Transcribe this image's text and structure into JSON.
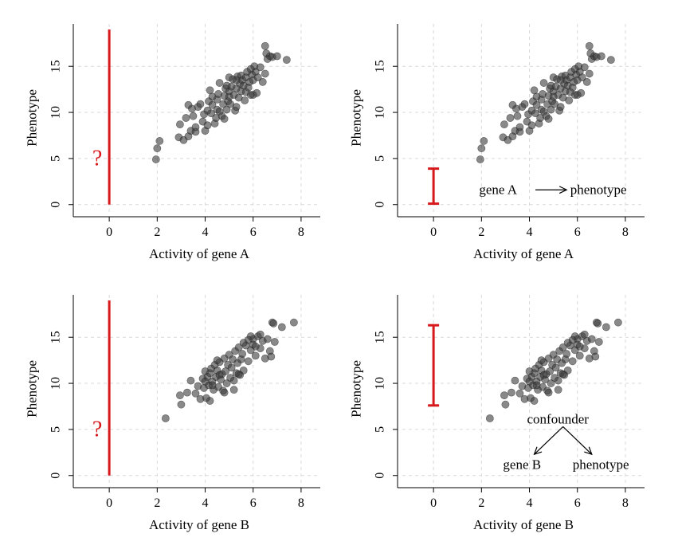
{
  "chart_data": [
    {
      "type": "scatter",
      "xlabel": "Activity of gene A",
      "ylabel": "Phenotype",
      "xlim": [
        -1.3,
        8.8
      ],
      "ylim": [
        -0.8,
        19.6
      ],
      "xticks": [
        0,
        2,
        4,
        6,
        8
      ],
      "yticks": [
        0,
        5,
        10,
        15
      ],
      "grid": true,
      "interval": {
        "x": 0,
        "lo": 0,
        "hi": 19,
        "style": "line"
      },
      "question_mark": {
        "text": "?",
        "x": -0.5,
        "y": 5
      },
      "annotations": [],
      "points": [
        [
          1.95,
          4.9
        ],
        [
          2.0,
          6.1
        ],
        [
          2.1,
          6.9
        ],
        [
          2.9,
          7.3
        ],
        [
          3.1,
          7.0
        ],
        [
          3.3,
          7.4
        ],
        [
          3.4,
          8.0
        ],
        [
          3.6,
          7.9
        ],
        [
          2.95,
          8.7
        ],
        [
          3.2,
          9.4
        ],
        [
          3.3,
          10.8
        ],
        [
          3.5,
          9.6
        ],
        [
          3.6,
          8.4
        ],
        [
          3.7,
          10.6
        ],
        [
          3.9,
          9.0
        ],
        [
          3.95,
          9.8
        ],
        [
          4.0,
          8.0
        ],
        [
          4.1,
          8.6
        ],
        [
          4.1,
          10.2
        ],
        [
          4.15,
          11.2
        ],
        [
          4.25,
          9.9
        ],
        [
          4.3,
          10.8
        ],
        [
          4.3,
          11.7
        ],
        [
          4.4,
          8.8
        ],
        [
          4.45,
          9.4
        ],
        [
          4.5,
          10.3
        ],
        [
          4.5,
          11.4
        ],
        [
          4.55,
          12.0
        ],
        [
          4.6,
          13.2
        ],
        [
          4.7,
          9.6
        ],
        [
          4.75,
          10.9
        ],
        [
          4.8,
          11.8
        ],
        [
          4.85,
          12.6
        ],
        [
          4.9,
          10.3
        ],
        [
          4.95,
          11.2
        ],
        [
          5.0,
          12.3
        ],
        [
          5.0,
          13.8
        ],
        [
          5.05,
          10.9
        ],
        [
          5.1,
          12.8
        ],
        [
          5.15,
          13.6
        ],
        [
          5.2,
          11.9
        ],
        [
          5.25,
          10.2
        ],
        [
          5.3,
          12.6
        ],
        [
          5.35,
          13.9
        ],
        [
          5.4,
          11.6
        ],
        [
          5.45,
          13.1
        ],
        [
          5.5,
          12.3
        ],
        [
          5.5,
          14.0
        ],
        [
          5.55,
          13.5
        ],
        [
          5.6,
          12.9
        ],
        [
          5.65,
          11.3
        ],
        [
          5.7,
          13.8
        ],
        [
          5.75,
          14.4
        ],
        [
          5.8,
          12.7
        ],
        [
          5.85,
          13.3
        ],
        [
          5.9,
          11.9
        ],
        [
          5.95,
          14.1
        ],
        [
          6.0,
          13.5
        ],
        [
          6.05,
          15.0
        ],
        [
          6.1,
          14.4
        ],
        [
          6.15,
          12.1
        ],
        [
          6.2,
          13.8
        ],
        [
          6.3,
          14.9
        ],
        [
          6.4,
          13.3
        ],
        [
          6.5,
          14.2
        ],
        [
          6.5,
          17.2
        ],
        [
          6.6,
          15.8
        ],
        [
          6.7,
          16.1
        ],
        [
          6.8,
          16.0
        ],
        [
          7.0,
          16.1
        ],
        [
          7.4,
          15.7
        ],
        [
          3.8,
          10.9
        ],
        [
          4.2,
          12.4
        ],
        [
          4.6,
          10.1
        ],
        [
          5.0,
          11.7
        ],
        [
          5.3,
          10.6
        ],
        [
          5.7,
          12.2
        ],
        [
          6.0,
          11.9
        ],
        [
          4.8,
          9.3
        ],
        [
          5.9,
          14.7
        ],
        [
          4.9,
          12.9
        ],
        [
          5.3,
          13.5
        ],
        [
          3.45,
          10.4
        ],
        [
          6.55,
          16.4
        ]
      ]
    },
    {
      "type": "scatter",
      "xlabel": "Activity of gene A",
      "ylabel": "Phenotype",
      "xlim": [
        -1.3,
        8.8
      ],
      "ylim": [
        -0.8,
        19.6
      ],
      "xticks": [
        0,
        2,
        4,
        6,
        8
      ],
      "yticks": [
        0,
        5,
        10,
        15
      ],
      "grid": true,
      "interval": {
        "x": 0,
        "lo": 0.1,
        "hi": 3.9,
        "style": "errorbar"
      },
      "question_mark": null,
      "annotations": [
        {
          "text": "gene A",
          "x": 1.9,
          "y": 1.6
        },
        {
          "text": "phenotype",
          "x": 5.7,
          "y": 1.6
        }
      ],
      "arrows": [
        {
          "from": [
            4.25,
            1.6
          ],
          "to": [
            5.55,
            1.6
          ]
        }
      ],
      "points": [
        [
          1.95,
          4.9
        ],
        [
          2.0,
          6.1
        ],
        [
          2.1,
          6.9
        ],
        [
          2.9,
          7.3
        ],
        [
          3.1,
          7.0
        ],
        [
          3.3,
          7.4
        ],
        [
          3.4,
          8.0
        ],
        [
          3.6,
          7.9
        ],
        [
          2.95,
          8.7
        ],
        [
          3.2,
          9.4
        ],
        [
          3.3,
          10.8
        ],
        [
          3.5,
          9.6
        ],
        [
          3.6,
          8.4
        ],
        [
          3.7,
          10.6
        ],
        [
          3.9,
          9.0
        ],
        [
          3.95,
          9.8
        ],
        [
          4.0,
          8.0
        ],
        [
          4.1,
          8.6
        ],
        [
          4.1,
          10.2
        ],
        [
          4.15,
          11.2
        ],
        [
          4.25,
          9.9
        ],
        [
          4.3,
          10.8
        ],
        [
          4.3,
          11.7
        ],
        [
          4.4,
          8.8
        ],
        [
          4.45,
          9.4
        ],
        [
          4.5,
          10.3
        ],
        [
          4.5,
          11.4
        ],
        [
          4.55,
          12.0
        ],
        [
          4.6,
          13.2
        ],
        [
          4.7,
          9.6
        ],
        [
          4.75,
          10.9
        ],
        [
          4.8,
          11.8
        ],
        [
          4.85,
          12.6
        ],
        [
          4.9,
          10.3
        ],
        [
          4.95,
          11.2
        ],
        [
          5.0,
          12.3
        ],
        [
          5.0,
          13.8
        ],
        [
          5.05,
          10.9
        ],
        [
          5.1,
          12.8
        ],
        [
          5.15,
          13.6
        ],
        [
          5.2,
          11.9
        ],
        [
          5.25,
          10.2
        ],
        [
          5.3,
          12.6
        ],
        [
          5.35,
          13.9
        ],
        [
          5.4,
          11.6
        ],
        [
          5.45,
          13.1
        ],
        [
          5.5,
          12.3
        ],
        [
          5.5,
          14.0
        ],
        [
          5.55,
          13.5
        ],
        [
          5.6,
          12.9
        ],
        [
          5.65,
          11.3
        ],
        [
          5.7,
          13.8
        ],
        [
          5.75,
          14.4
        ],
        [
          5.8,
          12.7
        ],
        [
          5.85,
          13.3
        ],
        [
          5.9,
          11.9
        ],
        [
          5.95,
          14.1
        ],
        [
          6.0,
          13.5
        ],
        [
          6.05,
          15.0
        ],
        [
          6.1,
          14.4
        ],
        [
          6.15,
          12.1
        ],
        [
          6.2,
          13.8
        ],
        [
          6.3,
          14.9
        ],
        [
          6.4,
          13.3
        ],
        [
          6.5,
          14.2
        ],
        [
          6.5,
          17.2
        ],
        [
          6.6,
          15.8
        ],
        [
          6.7,
          16.1
        ],
        [
          6.8,
          16.0
        ],
        [
          7.0,
          16.1
        ],
        [
          7.4,
          15.7
        ],
        [
          3.8,
          10.9
        ],
        [
          4.2,
          12.4
        ],
        [
          4.6,
          10.1
        ],
        [
          5.0,
          11.7
        ],
        [
          5.3,
          10.6
        ],
        [
          5.7,
          12.2
        ],
        [
          6.0,
          11.9
        ],
        [
          4.8,
          9.3
        ],
        [
          5.9,
          14.7
        ],
        [
          4.9,
          12.9
        ],
        [
          5.3,
          13.5
        ],
        [
          3.45,
          10.4
        ],
        [
          6.55,
          16.4
        ]
      ]
    },
    {
      "type": "scatter",
      "xlabel": "Activity of gene B",
      "ylabel": "Phenotype",
      "xlim": [
        -1.3,
        8.8
      ],
      "ylim": [
        -0.8,
        19.6
      ],
      "xticks": [
        0,
        2,
        4,
        6,
        8
      ],
      "yticks": [
        0,
        5,
        10,
        15
      ],
      "grid": true,
      "interval": {
        "x": 0,
        "lo": 0,
        "hi": 19,
        "style": "line"
      },
      "question_mark": {
        "text": "?",
        "x": -0.5,
        "y": 5
      },
      "annotations": [],
      "points": [
        [
          2.35,
          6.2
        ],
        [
          2.95,
          8.7
        ],
        [
          3.0,
          7.7
        ],
        [
          3.25,
          9.0
        ],
        [
          3.4,
          10.3
        ],
        [
          3.6,
          8.9
        ],
        [
          3.7,
          9.7
        ],
        [
          3.8,
          8.3
        ],
        [
          3.9,
          10.5
        ],
        [
          3.95,
          9.5
        ],
        [
          4.0,
          11.3
        ],
        [
          4.05,
          8.4
        ],
        [
          4.1,
          10.7
        ],
        [
          4.15,
          9.8
        ],
        [
          4.2,
          8.1
        ],
        [
          4.25,
          11.6
        ],
        [
          4.3,
          10.2
        ],
        [
          4.35,
          9.3
        ],
        [
          4.4,
          12.0
        ],
        [
          4.45,
          10.7
        ],
        [
          4.5,
          11.4
        ],
        [
          4.55,
          9.6
        ],
        [
          4.6,
          12.3
        ],
        [
          4.65,
          10.4
        ],
        [
          4.7,
          11.0
        ],
        [
          4.75,
          9.2
        ],
        [
          4.8,
          12.7
        ],
        [
          4.85,
          11.3
        ],
        [
          4.9,
          10.0
        ],
        [
          4.95,
          12.0
        ],
        [
          5.0,
          13.1
        ],
        [
          5.05,
          10.6
        ],
        [
          5.1,
          11.7
        ],
        [
          5.15,
          12.6
        ],
        [
          5.2,
          9.3
        ],
        [
          5.25,
          13.5
        ],
        [
          5.3,
          11.1
        ],
        [
          5.35,
          12.2
        ],
        [
          5.4,
          13.9
        ],
        [
          5.45,
          10.9
        ],
        [
          5.5,
          12.6
        ],
        [
          5.55,
          13.2
        ],
        [
          5.6,
          11.4
        ],
        [
          5.7,
          14.1
        ],
        [
          5.8,
          12.4
        ],
        [
          5.9,
          13.6
        ],
        [
          6.0,
          14.8
        ],
        [
          6.1,
          13.0
        ],
        [
          6.2,
          15.1
        ],
        [
          6.3,
          13.8
        ],
        [
          6.4,
          14.6
        ],
        [
          6.5,
          12.7
        ],
        [
          6.6,
          14.8
        ],
        [
          6.7,
          13.5
        ],
        [
          6.8,
          16.6
        ],
        [
          6.9,
          14.5
        ],
        [
          7.2,
          16.1
        ],
        [
          7.7,
          16.6
        ],
        [
          5.9,
          15.1
        ],
        [
          6.0,
          14.2
        ],
        [
          5.6,
          14.4
        ],
        [
          4.3,
          9.8
        ],
        [
          4.5,
          12.5
        ],
        [
          5.2,
          10.3
        ],
        [
          5.8,
          14.7
        ],
        [
          6.3,
          15.3
        ],
        [
          6.75,
          12.9
        ],
        [
          4.0,
          10.2
        ],
        [
          4.8,
          9.0
        ],
        [
          5.4,
          11.0
        ],
        [
          6.1,
          14.0
        ],
        [
          6.85,
          16.5
        ],
        [
          4.2,
          11.1
        ],
        [
          4.6,
          10.9
        ]
      ]
    },
    {
      "type": "scatter",
      "xlabel": "Activity of gene B",
      "ylabel": "Phenotype",
      "xlim": [
        -1.3,
        8.8
      ],
      "ylim": [
        -0.8,
        19.6
      ],
      "xticks": [
        0,
        2,
        4,
        6,
        8
      ],
      "yticks": [
        0,
        5,
        10,
        15
      ],
      "grid": true,
      "interval": {
        "x": 0,
        "lo": 7.6,
        "hi": 16.3,
        "style": "errorbar"
      },
      "question_mark": null,
      "annotations": [
        {
          "text": "confounder",
          "x": 3.9,
          "y": 6.1
        },
        {
          "text": "gene B",
          "x": 2.9,
          "y": 1.2
        },
        {
          "text": "phenotype",
          "x": 5.8,
          "y": 1.2
        }
      ],
      "arrows": [
        {
          "from": [
            5.4,
            5.3
          ],
          "to": [
            4.2,
            2.3
          ]
        },
        {
          "from": [
            5.4,
            5.3
          ],
          "to": [
            6.6,
            2.3
          ]
        }
      ],
      "points": [
        [
          2.35,
          6.2
        ],
        [
          2.95,
          8.7
        ],
        [
          3.0,
          7.7
        ],
        [
          3.25,
          9.0
        ],
        [
          3.4,
          10.3
        ],
        [
          3.6,
          8.9
        ],
        [
          3.7,
          9.7
        ],
        [
          3.8,
          8.3
        ],
        [
          3.9,
          10.5
        ],
        [
          3.95,
          9.5
        ],
        [
          4.0,
          11.3
        ],
        [
          4.05,
          8.4
        ],
        [
          4.1,
          10.7
        ],
        [
          4.15,
          9.8
        ],
        [
          4.2,
          8.1
        ],
        [
          4.25,
          11.6
        ],
        [
          4.3,
          10.2
        ],
        [
          4.35,
          9.3
        ],
        [
          4.4,
          12.0
        ],
        [
          4.45,
          10.7
        ],
        [
          4.5,
          11.4
        ],
        [
          4.55,
          9.6
        ],
        [
          4.6,
          12.3
        ],
        [
          4.65,
          10.4
        ],
        [
          4.7,
          11.0
        ],
        [
          4.75,
          9.2
        ],
        [
          4.8,
          12.7
        ],
        [
          4.85,
          11.3
        ],
        [
          4.9,
          10.0
        ],
        [
          4.95,
          12.0
        ],
        [
          5.0,
          13.1
        ],
        [
          5.05,
          10.6
        ],
        [
          5.1,
          11.7
        ],
        [
          5.15,
          12.6
        ],
        [
          5.2,
          9.3
        ],
        [
          5.25,
          13.5
        ],
        [
          5.3,
          11.1
        ],
        [
          5.35,
          12.2
        ],
        [
          5.4,
          13.9
        ],
        [
          5.45,
          10.9
        ],
        [
          5.5,
          12.6
        ],
        [
          5.55,
          13.2
        ],
        [
          5.6,
          11.4
        ],
        [
          5.7,
          14.1
        ],
        [
          5.8,
          12.4
        ],
        [
          5.9,
          13.6
        ],
        [
          6.0,
          14.8
        ],
        [
          6.1,
          13.0
        ],
        [
          6.2,
          15.1
        ],
        [
          6.3,
          13.8
        ],
        [
          6.4,
          14.6
        ],
        [
          6.5,
          12.7
        ],
        [
          6.6,
          14.8
        ],
        [
          6.7,
          13.5
        ],
        [
          6.8,
          16.6
        ],
        [
          6.9,
          14.5
        ],
        [
          7.2,
          16.1
        ],
        [
          7.7,
          16.6
        ],
        [
          5.9,
          15.1
        ],
        [
          6.0,
          14.2
        ],
        [
          5.6,
          14.4
        ],
        [
          4.3,
          9.8
        ],
        [
          4.5,
          12.5
        ],
        [
          5.2,
          10.3
        ],
        [
          5.8,
          14.7
        ],
        [
          6.3,
          15.3
        ],
        [
          6.75,
          12.9
        ],
        [
          4.0,
          10.2
        ],
        [
          4.8,
          9.0
        ],
        [
          5.4,
          11.0
        ],
        [
          6.1,
          14.0
        ],
        [
          6.85,
          16.5
        ],
        [
          4.2,
          11.1
        ],
        [
          4.6,
          10.9
        ]
      ]
    }
  ],
  "colors": {
    "point": "#3a3a3a",
    "interval": "#d7191c",
    "question": "#d7191c",
    "grid": "#d9d9d9"
  }
}
